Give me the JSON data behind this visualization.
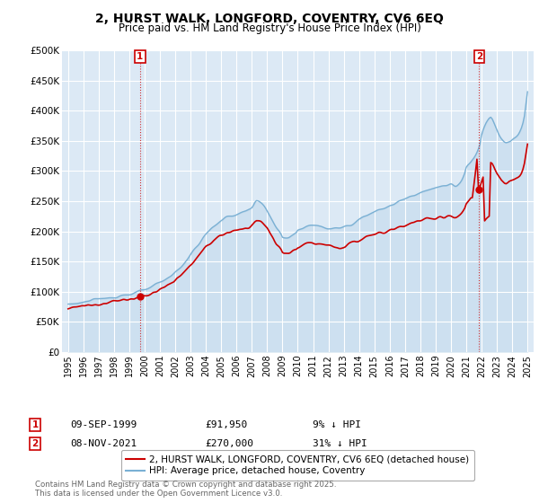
{
  "title": "2, HURST WALK, LONGFORD, COVENTRY, CV6 6EQ",
  "subtitle": "Price paid vs. HM Land Registry's House Price Index (HPI)",
  "ylim": [
    0,
    500000
  ],
  "yticks": [
    0,
    50000,
    100000,
    150000,
    200000,
    250000,
    300000,
    350000,
    400000,
    450000,
    500000
  ],
  "ytick_labels": [
    "£0",
    "£50K",
    "£100K",
    "£150K",
    "£200K",
    "£250K",
    "£300K",
    "£350K",
    "£400K",
    "£450K",
    "£500K"
  ],
  "sale1_date": "09-SEP-1999",
  "sale1_price": 91950,
  "sale1_label": "£91,950",
  "sale1_pct": "9% ↓ HPI",
  "sale2_date": "08-NOV-2021",
  "sale2_price": 270000,
  "sale2_label": "£270,000",
  "sale2_pct": "31% ↓ HPI",
  "legend_property": "2, HURST WALK, LONGFORD, COVENTRY, CV6 6EQ (detached house)",
  "legend_hpi": "HPI: Average price, detached house, Coventry",
  "footer": "Contains HM Land Registry data © Crown copyright and database right 2025.\nThis data is licensed under the Open Government Licence v3.0.",
  "line_color_property": "#cc0000",
  "line_color_hpi": "#7ab0d4",
  "marker1_x": 1999.7,
  "marker2_x": 2021.85,
  "bg_color": "#ffffff",
  "plot_bg_color": "#dce9f5",
  "grid_color": "#ffffff",
  "annotation_box_color": "#cc0000",
  "hpi_years": [
    1995.0,
    1995.1,
    1995.2,
    1995.3,
    1995.4,
    1995.5,
    1995.6,
    1995.7,
    1995.8,
    1995.9,
    1996.0,
    1996.1,
    1996.2,
    1996.3,
    1996.4,
    1996.5,
    1996.6,
    1996.7,
    1996.8,
    1996.9,
    1997.0,
    1997.1,
    1997.2,
    1997.3,
    1997.4,
    1997.5,
    1997.6,
    1997.7,
    1997.8,
    1997.9,
    1998.0,
    1998.1,
    1998.2,
    1998.3,
    1998.4,
    1998.5,
    1998.6,
    1998.7,
    1998.8,
    1998.9,
    1999.0,
    1999.1,
    1999.2,
    1999.3,
    1999.4,
    1999.5,
    1999.6,
    1999.7,
    1999.8,
    1999.9,
    2000.0,
    2000.1,
    2000.2,
    2000.3,
    2000.4,
    2000.5,
    2000.6,
    2000.7,
    2000.8,
    2000.9,
    2001.0,
    2001.1,
    2001.2,
    2001.3,
    2001.4,
    2001.5,
    2001.6,
    2001.7,
    2001.8,
    2001.9,
    2002.0,
    2002.1,
    2002.2,
    2002.3,
    2002.4,
    2002.5,
    2002.6,
    2002.7,
    2002.8,
    2002.9,
    2003.0,
    2003.1,
    2003.2,
    2003.3,
    2003.4,
    2003.5,
    2003.6,
    2003.7,
    2003.8,
    2003.9,
    2004.0,
    2004.1,
    2004.2,
    2004.3,
    2004.4,
    2004.5,
    2004.6,
    2004.7,
    2004.8,
    2004.9,
    2005.0,
    2005.1,
    2005.2,
    2005.3,
    2005.4,
    2005.5,
    2005.6,
    2005.7,
    2005.8,
    2005.9,
    2006.0,
    2006.1,
    2006.2,
    2006.3,
    2006.4,
    2006.5,
    2006.6,
    2006.7,
    2006.8,
    2006.9,
    2007.0,
    2007.1,
    2007.2,
    2007.3,
    2007.4,
    2007.5,
    2007.6,
    2007.7,
    2007.8,
    2007.9,
    2008.0,
    2008.1,
    2008.2,
    2008.3,
    2008.4,
    2008.5,
    2008.6,
    2008.7,
    2008.8,
    2008.9,
    2009.0,
    2009.1,
    2009.2,
    2009.3,
    2009.4,
    2009.5,
    2009.6,
    2009.7,
    2009.8,
    2009.9,
    2010.0,
    2010.1,
    2010.2,
    2010.3,
    2010.4,
    2010.5,
    2010.6,
    2010.7,
    2010.8,
    2010.9,
    2011.0,
    2011.1,
    2011.2,
    2011.3,
    2011.4,
    2011.5,
    2011.6,
    2011.7,
    2011.8,
    2011.9,
    2012.0,
    2012.1,
    2012.2,
    2012.3,
    2012.4,
    2012.5,
    2012.6,
    2012.7,
    2012.8,
    2012.9,
    2013.0,
    2013.1,
    2013.2,
    2013.3,
    2013.4,
    2013.5,
    2013.6,
    2013.7,
    2013.8,
    2013.9,
    2014.0,
    2014.1,
    2014.2,
    2014.3,
    2014.4,
    2014.5,
    2014.6,
    2014.7,
    2014.8,
    2014.9,
    2015.0,
    2015.1,
    2015.2,
    2015.3,
    2015.4,
    2015.5,
    2015.6,
    2015.7,
    2015.8,
    2015.9,
    2016.0,
    2016.1,
    2016.2,
    2016.3,
    2016.4,
    2016.5,
    2016.6,
    2016.7,
    2016.8,
    2016.9,
    2017.0,
    2017.1,
    2017.2,
    2017.3,
    2017.4,
    2017.5,
    2017.6,
    2017.7,
    2017.8,
    2017.9,
    2018.0,
    2018.1,
    2018.2,
    2018.3,
    2018.4,
    2018.5,
    2018.6,
    2018.7,
    2018.8,
    2018.9,
    2019.0,
    2019.1,
    2019.2,
    2019.3,
    2019.4,
    2019.5,
    2019.6,
    2019.7,
    2019.8,
    2019.9,
    2020.0,
    2020.1,
    2020.2,
    2020.3,
    2020.4,
    2020.5,
    2020.6,
    2020.7,
    2020.8,
    2020.9,
    2021.0,
    2021.1,
    2021.2,
    2021.3,
    2021.4,
    2021.5,
    2021.6,
    2021.7,
    2021.8,
    2021.9,
    2022.0,
    2022.1,
    2022.2,
    2022.3,
    2022.4,
    2022.5,
    2022.6,
    2022.7,
    2022.8,
    2022.9,
    2023.0,
    2023.1,
    2023.2,
    2023.3,
    2023.4,
    2023.5,
    2023.6,
    2023.7,
    2023.8,
    2023.9,
    2024.0,
    2024.1,
    2024.2,
    2024.3,
    2024.4,
    2024.5,
    2024.6,
    2024.7,
    2024.8,
    2024.9,
    2025.0
  ]
}
